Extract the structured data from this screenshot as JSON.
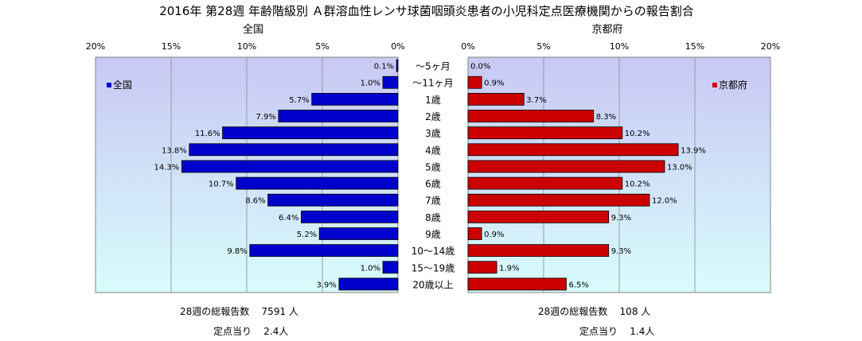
{
  "title": "2016年 第28週 年齢階級別 Ａ群溶血性レンサ球菌咽頭炎患者の小児科定点医療機関からの報告割合",
  "colors": {
    "left_bar": "#0000cc",
    "right_bar": "#cc0000",
    "plot_bg_top": "#c8c8f4",
    "plot_bg_bottom": "#d8fcfc"
  },
  "chart_data": {
    "type": "bar",
    "orientation": "horizontal-back-to-back",
    "categories": [
      "～5ヶ月",
      "～11ヶ月",
      "1歳",
      "2歳",
      "3歳",
      "4歳",
      "5歳",
      "6歳",
      "7歳",
      "8歳",
      "9歳",
      "10～14歳",
      "15～19歳",
      "20歳以上"
    ],
    "series": [
      {
        "name": "全国",
        "color": "#0000cc",
        "values": [
          0.1,
          1.0,
          5.7,
          7.9,
          11.6,
          13.8,
          14.3,
          10.7,
          8.6,
          6.4,
          5.2,
          9.8,
          1.0,
          3.9
        ]
      },
      {
        "name": "京都府",
        "color": "#cc0000",
        "values": [
          0.0,
          0.9,
          3.7,
          8.3,
          10.2,
          13.9,
          13.0,
          10.2,
          12.0,
          9.3,
          0.9,
          9.3,
          1.9,
          6.5
        ]
      }
    ],
    "left_subtitle": "全国",
    "right_subtitle": "京都府",
    "xlim": [
      0,
      20
    ],
    "ticks": [
      "0%",
      "5%",
      "10%",
      "15%",
      "20%"
    ],
    "left_ticks": [
      "20%",
      "15%",
      "10%",
      "5%",
      "0%"
    ],
    "right_ticks": [
      "0%",
      "5%",
      "10%",
      "15%",
      "20%"
    ],
    "grid": true,
    "legend_left": "top-left",
    "legend_right": "top-right"
  },
  "footer": {
    "left": {
      "total_label": "28週の総報告数",
      "total_value": "7591 人",
      "per_label": "定点当り",
      "per_value": "2.4人"
    },
    "right": {
      "total_label": "28週の総報告数",
      "total_value": "108 人",
      "per_label": "定点当り",
      "per_value": "1.4人"
    }
  }
}
